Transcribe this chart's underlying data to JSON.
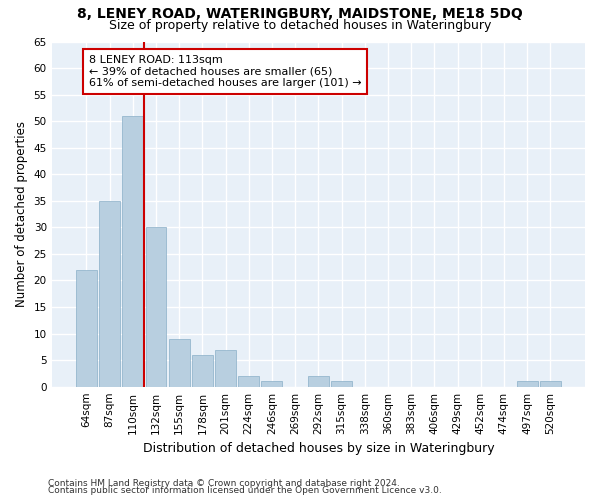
{
  "title1": "8, LENEY ROAD, WATERINGBURY, MAIDSTONE, ME18 5DQ",
  "title2": "Size of property relative to detached houses in Wateringbury",
  "xlabel": "Distribution of detached houses by size in Wateringbury",
  "ylabel": "Number of detached properties",
  "bin_labels": [
    "64sqm",
    "87sqm",
    "110sqm",
    "132sqm",
    "155sqm",
    "178sqm",
    "201sqm",
    "224sqm",
    "246sqm",
    "269sqm",
    "292sqm",
    "315sqm",
    "338sqm",
    "360sqm",
    "383sqm",
    "406sqm",
    "429sqm",
    "452sqm",
    "474sqm",
    "497sqm",
    "520sqm"
  ],
  "bar_values": [
    22,
    35,
    51,
    30,
    9,
    6,
    7,
    2,
    1,
    0,
    2,
    1,
    0,
    0,
    0,
    0,
    0,
    0,
    0,
    1,
    1
  ],
  "bar_color": "#b8cfe0",
  "bar_edge_color": "#8aafc8",
  "background_color": "#e8f0f8",
  "grid_color": "#ffffff",
  "red_line_x": 2.5,
  "annotation_text": "8 LENEY ROAD: 113sqm\n← 39% of detached houses are smaller (65)\n61% of semi-detached houses are larger (101) →",
  "annotation_box_color": "#ffffff",
  "annotation_box_edge": "#cc0000",
  "ylim": [
    0,
    65
  ],
  "yticks": [
    0,
    5,
    10,
    15,
    20,
    25,
    30,
    35,
    40,
    45,
    50,
    55,
    60,
    65
  ],
  "footnote1": "Contains HM Land Registry data © Crown copyright and database right 2024.",
  "footnote2": "Contains public sector information licensed under the Open Government Licence v3.0.",
  "title1_fontsize": 10,
  "title2_fontsize": 9,
  "xlabel_fontsize": 9,
  "ylabel_fontsize": 8.5,
  "tick_fontsize": 7.5,
  "annotation_fontsize": 8,
  "footnote_fontsize": 6.5,
  "fig_bg": "#ffffff"
}
